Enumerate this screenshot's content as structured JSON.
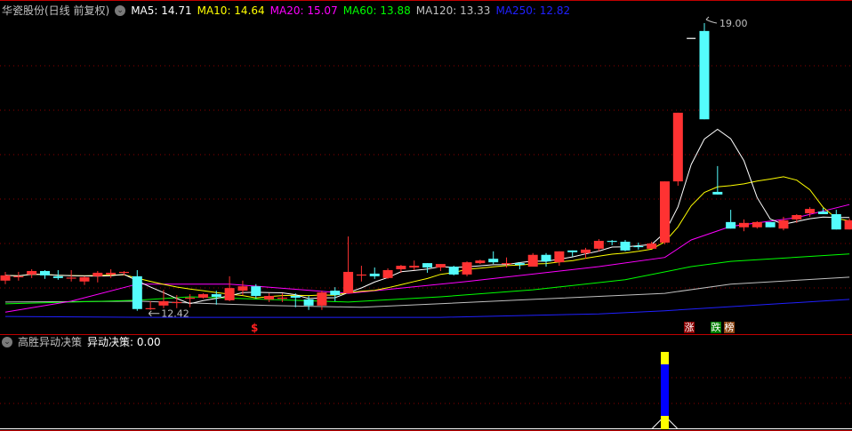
{
  "header": {
    "title": "华瓷股份(日线 前复权)",
    "ma": [
      {
        "label": "MA5: 14.71",
        "color": "#ffffff"
      },
      {
        "label": "MA10: 14.64",
        "color": "#ffff00"
      },
      {
        "label": "MA20: 15.07",
        "color": "#ff00ff"
      },
      {
        "label": "MA60: 13.88",
        "color": "#00ff00"
      },
      {
        "label": "MA120: 13.33",
        "color": "#c0c0c0"
      },
      {
        "label": "MA250: 12.82",
        "color": "#2020ff"
      }
    ]
  },
  "sub_header": {
    "title": "高胜异动决策",
    "value_label": "异动决策: 0.00"
  },
  "markers": {
    "dollar": "$",
    "up_board": "涨",
    "down_board": "跌",
    "list_board": "榜"
  },
  "annotations": {
    "high_label": "19.00",
    "low_label": "12.42"
  },
  "colors": {
    "up": "#ff3232",
    "down": "#54fcfc",
    "flat": "#ffffff",
    "grid": "#8b0000",
    "separator": "#c00000"
  },
  "chart_data": {
    "type": "candlestick",
    "ohlc": [
      [
        13.11,
        13.31,
        13.03,
        13.23
      ],
      [
        13.21,
        13.31,
        13.11,
        13.21
      ],
      [
        13.25,
        13.37,
        13.17,
        13.33
      ],
      [
        13.33,
        13.35,
        13.15,
        13.23
      ],
      [
        13.21,
        13.35,
        13.13,
        13.17
      ],
      [
        13.17,
        13.35,
        13.09,
        13.18
      ],
      [
        13.09,
        13.21,
        13.01,
        13.19
      ],
      [
        13.21,
        13.33,
        13.07,
        13.29
      ],
      [
        13.25,
        13.37,
        13.17,
        13.29
      ],
      [
        13.3,
        13.33,
        13.23,
        13.31
      ],
      [
        13.21,
        13.35,
        12.42,
        12.46
      ],
      [
        12.47,
        12.64,
        12.44,
        12.48
      ],
      [
        12.54,
        12.9,
        12.48,
        12.64
      ],
      [
        12.61,
        12.78,
        12.48,
        12.62
      ],
      [
        12.71,
        12.8,
        12.5,
        12.72
      ],
      [
        12.72,
        12.82,
        12.7,
        12.8
      ],
      [
        12.8,
        12.88,
        12.56,
        12.74
      ],
      [
        12.66,
        13.21,
        12.64,
        12.94
      ],
      [
        12.88,
        13.11,
        12.78,
        12.98
      ],
      [
        12.98,
        13.03,
        12.7,
        12.76
      ],
      [
        12.68,
        12.82,
        12.62,
        12.76
      ],
      [
        12.71,
        12.82,
        12.62,
        12.72
      ],
      [
        12.76,
        12.82,
        12.5,
        12.72
      ],
      [
        12.68,
        12.76,
        12.44,
        12.54
      ],
      [
        12.54,
        12.88,
        12.44,
        12.84
      ],
      [
        12.88,
        12.96,
        12.64,
        12.78
      ],
      [
        12.82,
        14.12,
        12.82,
        13.31
      ],
      [
        13.25,
        13.45,
        13.09,
        13.25
      ],
      [
        13.27,
        13.41,
        13.15,
        13.21
      ],
      [
        13.17,
        13.39,
        13.15,
        13.35
      ],
      [
        13.37,
        13.47,
        13.29,
        13.45
      ],
      [
        13.41,
        13.57,
        13.35,
        13.45
      ],
      [
        13.51,
        13.51,
        13.29,
        13.41
      ],
      [
        13.41,
        13.49,
        13.33,
        13.49
      ],
      [
        13.43,
        13.45,
        13.23,
        13.25
      ],
      [
        13.25,
        13.55,
        13.21,
        13.53
      ],
      [
        13.51,
        13.59,
        13.49,
        13.57
      ],
      [
        13.61,
        13.78,
        13.49,
        13.53
      ],
      [
        13.5,
        13.64,
        13.41,
        13.51
      ],
      [
        13.51,
        13.53,
        13.37,
        13.47
      ],
      [
        13.43,
        13.74,
        13.43,
        13.7
      ],
      [
        13.7,
        13.74,
        13.43,
        13.55
      ],
      [
        13.53,
        13.78,
        13.45,
        13.78
      ],
      [
        13.8,
        13.8,
        13.66,
        13.76
      ],
      [
        13.74,
        13.86,
        13.61,
        13.82
      ],
      [
        13.84,
        14.06,
        13.78,
        14.02
      ],
      [
        14.02,
        14.04,
        13.92,
        14.01
      ],
      [
        14.0,
        14.04,
        13.78,
        13.8
      ],
      [
        13.9,
        13.98,
        13.82,
        13.89
      ],
      [
        13.84,
        14.0,
        13.84,
        13.96
      ],
      [
        13.98,
        15.38,
        13.94,
        15.38
      ],
      [
        15.38,
        16.95,
        15.28,
        16.95
      ],
      [
        18.65,
        18.65,
        18.65,
        18.65
      ],
      [
        18.82,
        19.0,
        16.8,
        16.8
      ],
      [
        15.14,
        15.73,
        15.08,
        15.08
      ],
      [
        14.45,
        14.73,
        14.3,
        14.3
      ],
      [
        14.33,
        14.51,
        14.24,
        14.43
      ],
      [
        14.33,
        14.47,
        14.3,
        14.45
      ],
      [
        14.45,
        14.45,
        14.33,
        14.33
      ],
      [
        14.3,
        14.57,
        14.26,
        14.49
      ],
      [
        14.51,
        14.63,
        14.43,
        14.61
      ],
      [
        14.65,
        14.79,
        14.57,
        14.75
      ],
      [
        14.69,
        14.77,
        14.63,
        14.63
      ],
      [
        14.63,
        14.73,
        14.28,
        14.28
      ],
      [
        14.28,
        14.53,
        14.28,
        14.49
      ]
    ],
    "ma_lines": {
      "MA20": [
        [
          0,
          12.39
        ],
        [
          5,
          12.64
        ],
        [
          10,
          13.03
        ],
        [
          17,
          13.03
        ],
        [
          26,
          12.82
        ],
        [
          35,
          13.09
        ],
        [
          45,
          13.43
        ],
        [
          50,
          13.64
        ],
        [
          52,
          14.04
        ],
        [
          55,
          14.35
        ],
        [
          60,
          14.55
        ],
        [
          64,
          14.85
        ]
      ],
      "MA60": [
        [
          0,
          12.58
        ],
        [
          10,
          12.66
        ],
        [
          14,
          12.74
        ],
        [
          26,
          12.62
        ],
        [
          33,
          12.74
        ],
        [
          40,
          12.9
        ],
        [
          47,
          13.13
        ],
        [
          52,
          13.43
        ],
        [
          55,
          13.55
        ],
        [
          64,
          13.72
        ]
      ],
      "MA120": [
        [
          0,
          12.62
        ],
        [
          10,
          12.64
        ],
        [
          20,
          12.54
        ],
        [
          27,
          12.5
        ],
        [
          40,
          12.68
        ],
        [
          50,
          12.82
        ],
        [
          55,
          13.03
        ],
        [
          64,
          13.19
        ]
      ],
      "MA250": [
        [
          0,
          12.29
        ],
        [
          11,
          12.27
        ],
        [
          33,
          12.27
        ],
        [
          45,
          12.35
        ],
        [
          50,
          12.42
        ],
        [
          64,
          12.68
        ]
      ]
    },
    "price_range": [
      12.27,
      19.0
    ],
    "indicator": {
      "signal_index": 50,
      "value": 0.0
    },
    "grid": true
  }
}
